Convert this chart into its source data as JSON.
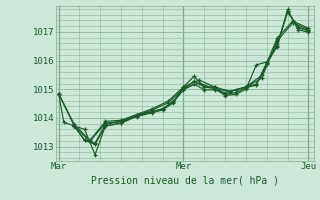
{
  "title": "",
  "xlabel": "Pression niveau de la mer( hPa )",
  "ylabel": "",
  "bg_color": "#cce8d8",
  "grid_color": "#88b898",
  "line_color": "#1a5c28",
  "x_ticks": [
    0,
    48,
    96
  ],
  "x_tick_labels": [
    "Mar",
    "Mer",
    "Jeu"
  ],
  "y_ticks": [
    1013,
    1014,
    1015,
    1016,
    1017
  ],
  "ylim": [
    1012.5,
    1017.9
  ],
  "xlim": [
    -1,
    98
  ],
  "series": [
    [
      [
        0,
        1014.85
      ],
      [
        2,
        1013.85
      ],
      [
        6,
        1013.72
      ],
      [
        10,
        1013.6
      ],
      [
        14,
        1012.72
      ],
      [
        18,
        1013.72
      ],
      [
        24,
        1013.82
      ],
      [
        30,
        1014.1
      ],
      [
        36,
        1014.22
      ],
      [
        40,
        1014.32
      ],
      [
        44,
        1014.55
      ],
      [
        48,
        1015.08
      ],
      [
        52,
        1015.45
      ],
      [
        56,
        1015.08
      ],
      [
        60,
        1015.08
      ],
      [
        64,
        1014.82
      ],
      [
        68,
        1014.88
      ],
      [
        72,
        1015.05
      ],
      [
        76,
        1015.15
      ],
      [
        80,
        1015.88
      ],
      [
        84,
        1016.52
      ],
      [
        88,
        1017.72
      ],
      [
        92,
        1017.12
      ],
      [
        96,
        1017.08
      ]
    ],
    [
      [
        6,
        1013.72
      ],
      [
        10,
        1013.22
      ],
      [
        14,
        1013.08
      ],
      [
        18,
        1013.72
      ],
      [
        24,
        1013.82
      ],
      [
        30,
        1014.05
      ],
      [
        36,
        1014.18
      ],
      [
        40,
        1014.28
      ],
      [
        44,
        1014.52
      ],
      [
        48,
        1015.0
      ],
      [
        52,
        1015.28
      ],
      [
        56,
        1015.08
      ],
      [
        60,
        1015.02
      ],
      [
        64,
        1014.78
      ],
      [
        68,
        1014.82
      ],
      [
        72,
        1015.0
      ],
      [
        76,
        1015.85
      ],
      [
        80,
        1015.95
      ],
      [
        84,
        1016.48
      ],
      [
        88,
        1017.78
      ],
      [
        92,
        1017.08
      ],
      [
        96,
        1016.98
      ]
    ],
    [
      [
        6,
        1013.72
      ],
      [
        10,
        1013.22
      ],
      [
        14,
        1013.12
      ],
      [
        18,
        1013.78
      ],
      [
        24,
        1013.88
      ],
      [
        30,
        1014.08
      ],
      [
        36,
        1014.22
      ],
      [
        40,
        1014.32
      ],
      [
        44,
        1014.58
      ],
      [
        48,
        1014.98
      ],
      [
        52,
        1015.18
      ],
      [
        56,
        1014.98
      ],
      [
        60,
        1014.98
      ],
      [
        64,
        1014.88
      ],
      [
        68,
        1014.98
      ],
      [
        72,
        1015.08
      ],
      [
        76,
        1015.18
      ],
      [
        80,
        1015.92
      ],
      [
        84,
        1016.58
      ],
      [
        88,
        1017.68
      ],
      [
        92,
        1017.18
      ],
      [
        96,
        1017.02
      ]
    ],
    [
      [
        0,
        1014.85
      ],
      [
        6,
        1013.72
      ],
      [
        12,
        1013.18
      ],
      [
        18,
        1013.82
      ],
      [
        24,
        1013.88
      ],
      [
        30,
        1014.08
      ],
      [
        36,
        1014.28
      ],
      [
        42,
        1014.52
      ],
      [
        48,
        1015.02
      ],
      [
        54,
        1015.22
      ],
      [
        60,
        1015.02
      ],
      [
        66,
        1014.92
      ],
      [
        72,
        1015.08
      ],
      [
        78,
        1015.38
      ],
      [
        84,
        1016.68
      ],
      [
        90,
        1017.32
      ],
      [
        96,
        1017.08
      ]
    ],
    [
      [
        0,
        1014.85
      ],
      [
        6,
        1013.78
      ],
      [
        12,
        1013.22
      ],
      [
        18,
        1013.88
      ],
      [
        24,
        1013.92
      ],
      [
        30,
        1014.12
      ],
      [
        36,
        1014.32
      ],
      [
        42,
        1014.58
      ],
      [
        48,
        1015.08
      ],
      [
        54,
        1015.32
      ],
      [
        60,
        1015.08
      ],
      [
        66,
        1014.92
      ],
      [
        72,
        1015.08
      ],
      [
        78,
        1015.48
      ],
      [
        84,
        1016.78
      ],
      [
        90,
        1017.38
      ],
      [
        96,
        1017.12
      ]
    ]
  ]
}
